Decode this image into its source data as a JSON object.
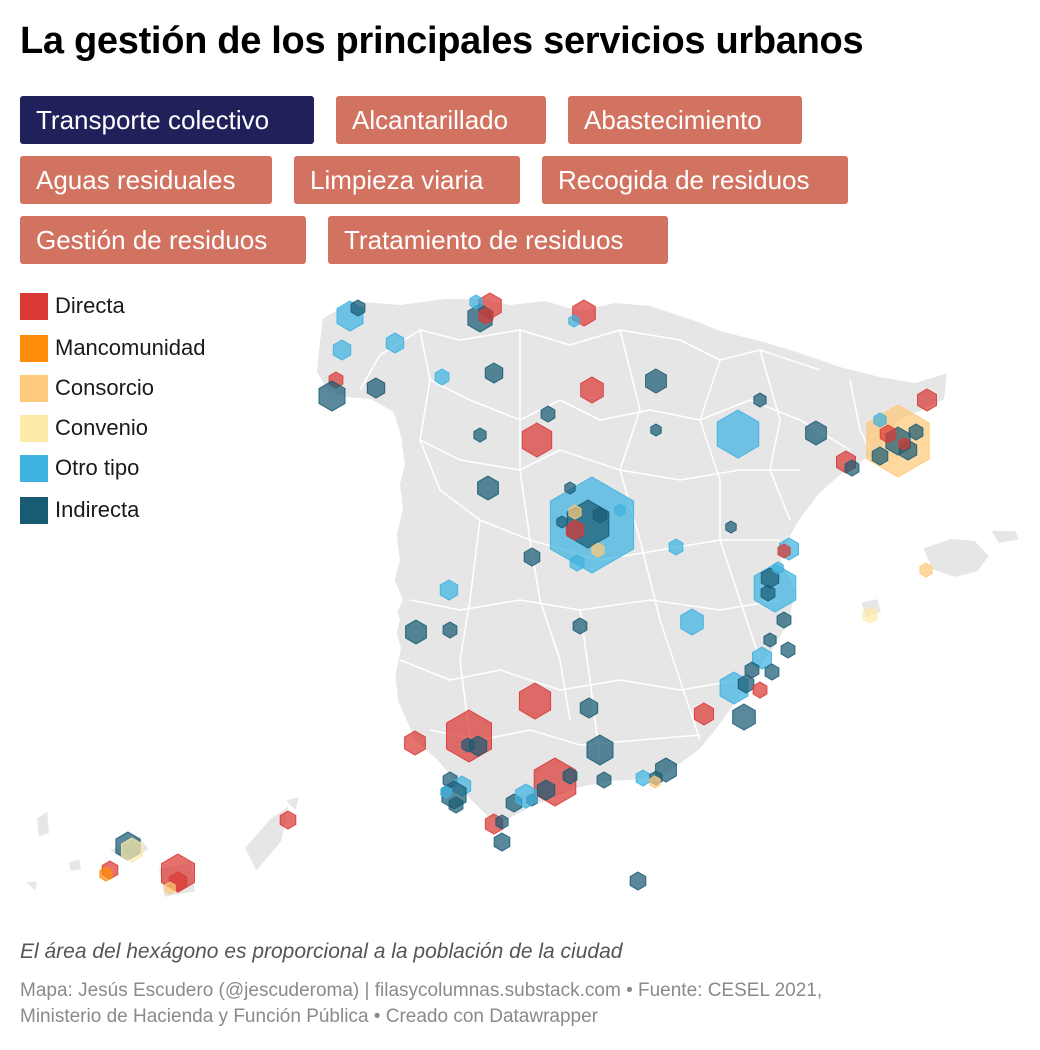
{
  "title": "La gestión de los principales servicios urbanos",
  "buttons": [
    {
      "label": "Transporte colectivo",
      "active": true
    },
    {
      "label": "Alcantarillado",
      "active": false
    },
    {
      "label": "Abastecimiento",
      "active": false
    },
    {
      "label": "Aguas residuales",
      "active": false
    },
    {
      "label": "Limpieza viaria",
      "active": false
    },
    {
      "label": "Recogida de residuos",
      "active": false
    },
    {
      "label": "Gestión de residuos",
      "active": false
    },
    {
      "label": "Tratamiento de residuos",
      "active": false
    }
  ],
  "legend": [
    {
      "label": "Directa",
      "color": "#d93a35"
    },
    {
      "label": "Mancomunidad",
      "color": "#fd8d09"
    },
    {
      "label": "Consorcio",
      "color": "#fdc97a"
    },
    {
      "label": "Convenio",
      "color": "#fcebaa"
    },
    {
      "label": "Otro tipo",
      "color": "#3eb3e0"
    },
    {
      "label": "Indirecta",
      "color": "#1a5b74"
    }
  ],
  "note": "El área del hexágono es proporcional a la población de la ciudad",
  "source_line1": "Mapa: Jesús Escudero (@jescuderoma) | filasycolumnas.substack.com • Fuente: CESEL 2021,",
  "source_line2": "Ministerio de Hacienda y Función Pública • Creado con Datawrapper"
}
